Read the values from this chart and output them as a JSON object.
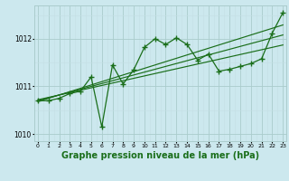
{
  "x": [
    0,
    1,
    2,
    3,
    4,
    5,
    6,
    7,
    8,
    9,
    10,
    11,
    12,
    13,
    14,
    15,
    16,
    17,
    18,
    19,
    20,
    21,
    22,
    23
  ],
  "y_main": [
    1010.7,
    1010.7,
    1010.75,
    1010.85,
    1010.9,
    1011.2,
    1010.15,
    1011.45,
    1011.05,
    1011.35,
    1011.82,
    1012.0,
    1011.88,
    1012.02,
    1011.88,
    1011.55,
    1011.68,
    1011.32,
    1011.36,
    1011.42,
    1011.48,
    1011.58,
    1012.12,
    1012.55
  ],
  "y_trend1": [
    1010.72,
    1010.77,
    1010.82,
    1010.87,
    1010.92,
    1010.97,
    1011.02,
    1011.07,
    1011.12,
    1011.17,
    1011.22,
    1011.27,
    1011.32,
    1011.37,
    1011.42,
    1011.47,
    1011.52,
    1011.57,
    1011.62,
    1011.67,
    1011.72,
    1011.77,
    1011.82,
    1011.87
  ],
  "y_trend2": [
    1010.7,
    1010.76,
    1010.82,
    1010.88,
    1010.94,
    1011.0,
    1011.06,
    1011.12,
    1011.18,
    1011.24,
    1011.3,
    1011.36,
    1011.42,
    1011.48,
    1011.54,
    1011.6,
    1011.66,
    1011.72,
    1011.78,
    1011.84,
    1011.9,
    1011.96,
    1012.02,
    1012.08
  ],
  "y_trend3": [
    1010.68,
    1010.75,
    1010.82,
    1010.89,
    1010.96,
    1011.03,
    1011.1,
    1011.17,
    1011.24,
    1011.31,
    1011.38,
    1011.45,
    1011.52,
    1011.59,
    1011.66,
    1011.73,
    1011.8,
    1011.87,
    1011.94,
    1012.01,
    1012.08,
    1012.15,
    1012.22,
    1012.29
  ],
  "ylim": [
    1009.85,
    1012.7
  ],
  "yticks": [
    1010,
    1011,
    1012
  ],
  "bg_color": "#cce8ee",
  "line_color": "#1a6e1a",
  "grid_major_color": "#aacccc",
  "grid_minor_color": "#c4dfe4",
  "title": "Graphe pression niveau de la mer (hPa)",
  "marker": "+",
  "markersize": 4,
  "linewidth": 0.9,
  "title_fontsize": 7.0
}
